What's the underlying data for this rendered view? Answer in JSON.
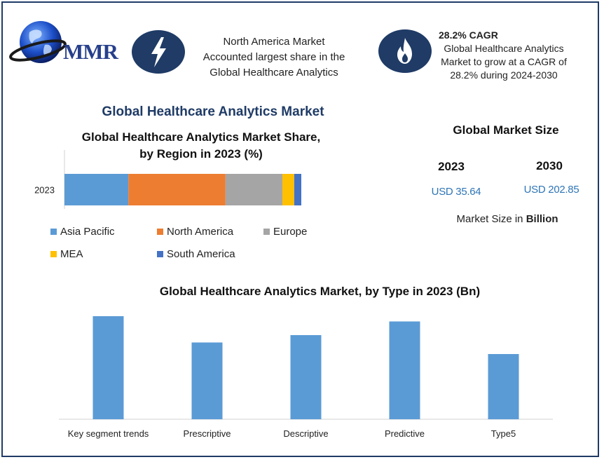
{
  "header": {
    "logo_text": "MMR",
    "info1": {
      "icon": "lightning-icon",
      "lines": [
        "North America Market",
        "Accounted largest share in the",
        "Global Healthcare Analytics"
      ]
    },
    "info2": {
      "icon": "flame-icon",
      "title": "28.2% CAGR",
      "lines": [
        "Global Healthcare Analytics",
        "Market to grow at a CAGR of",
        "28.2% during 2024-2030"
      ]
    }
  },
  "main_title": "Global Healthcare Analytics Market",
  "market_size": {
    "title": "Global Market Size",
    "years": [
      {
        "year": "2023",
        "value": "USD 35.64"
      },
      {
        "year": "2030",
        "value": "USD 202.85"
      }
    ],
    "note_prefix": "Market Size in ",
    "note_bold": "Billion"
  },
  "colors": {
    "navy": "#1f3b66",
    "blue_value": "#2e75b6"
  },
  "chart_data": [
    {
      "type": "bar",
      "orientation": "horizontal-stacked",
      "title": "Global Healthcare Analytics Market Share, by Region in 2023 (%)",
      "title_lines": [
        "Global Healthcare Analytics Market Share,",
        "by Region in 2023 (%)"
      ],
      "categories": [
        "2023"
      ],
      "series": [
        {
          "name": "Asia Pacific",
          "color": "#5b9bd5",
          "values": [
            27
          ]
        },
        {
          "name": "North America",
          "color": "#ed7d31",
          "values": [
            41
          ]
        },
        {
          "name": "Europe",
          "color": "#a5a5a5",
          "values": [
            24
          ]
        },
        {
          "name": "MEA",
          "color": "#ffc000",
          "values": [
            5
          ]
        },
        {
          "name": "South America",
          "color": "#4472c4",
          "values": [
            3
          ]
        }
      ],
      "xlim": [
        0,
        100
      ],
      "grid": false,
      "legend": "bottom"
    },
    {
      "type": "bar",
      "title": "Global Healthcare Analytics Market, by Type in 2023 (Bn)",
      "categories": [
        "Key segment trends",
        "Prescriptive",
        "Descriptive",
        "Predictive",
        "Type5"
      ],
      "values": [
        9.8,
        7.3,
        8.0,
        9.3,
        6.2
      ],
      "color": "#5b9bd5",
      "ylim": [
        0,
        10
      ],
      "grid": false
    }
  ]
}
